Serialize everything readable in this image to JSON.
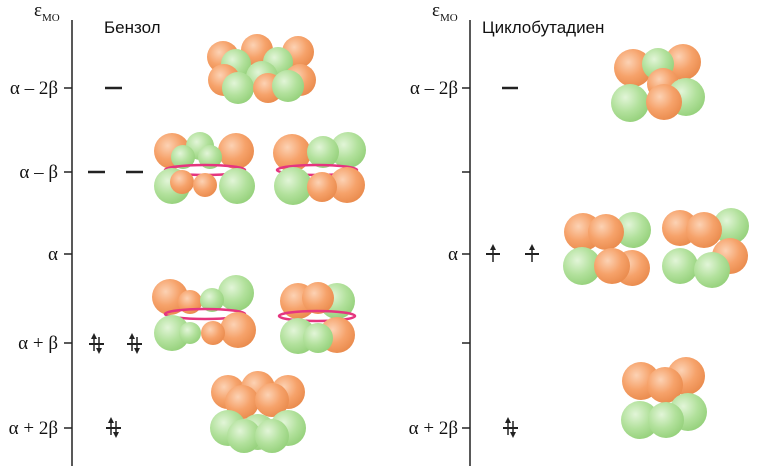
{
  "colors": {
    "orange": "#f6a26a",
    "green": "#a9dc92",
    "ring": "#e5357f",
    "axis": "#222222"
  },
  "panels": [
    {
      "id": "benzene",
      "title": "Бензол",
      "axis_label": "ε",
      "axis_label_sub": "МО",
      "levels": [
        {
          "label": "α – 2β",
          "orbitals": 1,
          "electrons": [
            0
          ]
        },
        {
          "label": "α – β",
          "orbitals": 2,
          "electrons": [
            0,
            0
          ]
        },
        {
          "label": "α",
          "orbitals": 0,
          "electrons": []
        },
        {
          "label": "α + β",
          "orbitals": 2,
          "electrons": [
            2,
            2
          ]
        },
        {
          "label": "α + 2β",
          "orbitals": 1,
          "electrons": [
            2
          ]
        }
      ]
    },
    {
      "id": "cyclobutadiene",
      "title": "Циклобутадиен",
      "axis_label": "ε",
      "axis_label_sub": "МО",
      "levels": [
        {
          "label": "α – 2β",
          "orbitals": 1,
          "electrons": [
            0
          ]
        },
        {
          "label": "α",
          "orbitals": 2,
          "electrons": [
            1,
            1
          ]
        },
        {
          "label": "α + 2β",
          "orbitals": 1,
          "electrons": [
            2
          ]
        }
      ]
    }
  ]
}
